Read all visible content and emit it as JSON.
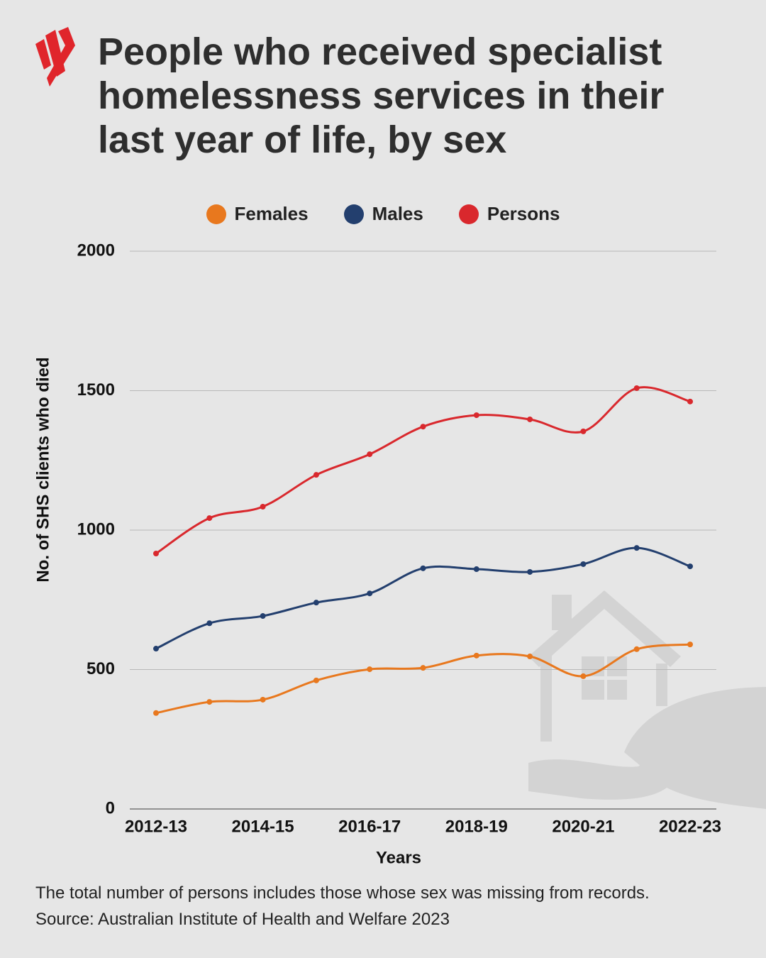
{
  "chart_data": {
    "type": "line",
    "title": "People who received specialist homelessness services in their last year of life, by sex",
    "x_label": "Years",
    "y_label": "No. of SHS clients who died",
    "note": "The total number of persons includes those whose sex was missing from records.",
    "source": "Source: Australian Institute of Health and Welfare 2023",
    "categories": [
      "2012-13",
      null,
      "2014-15",
      null,
      "2016-17",
      null,
      "2018-19",
      null,
      "2020-21",
      null,
      "2022-23"
    ],
    "series": [
      {
        "name": "Females",
        "color": "#e8781e",
        "values": [
          344,
          384,
          392,
          461,
          501,
          506,
          550,
          547,
          476,
          573,
          590
        ]
      },
      {
        "name": "Males",
        "color": "#233f6e",
        "values": [
          575,
          666,
          692,
          740,
          773,
          863,
          860,
          850,
          878,
          936,
          870
        ]
      },
      {
        "name": "Persons",
        "color": "#d9282d",
        "values": [
          916,
          1043,
          1084,
          1198,
          1272,
          1371,
          1412,
          1397,
          1354,
          1509,
          1461
        ]
      }
    ],
    "ylim": [
      0,
      2000
    ],
    "yticks": [
      0,
      500,
      1000,
      1500,
      2000
    ],
    "grid": true
  }
}
